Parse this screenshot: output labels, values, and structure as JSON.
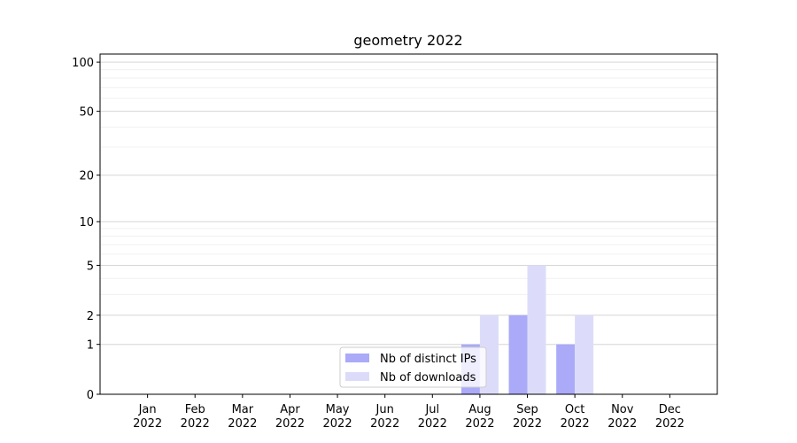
{
  "chart_data": {
    "type": "bar",
    "title": "geometry 2022",
    "categories": [
      "Jan 2022",
      "Feb 2022",
      "Mar 2022",
      "Apr 2022",
      "May 2022",
      "Jun 2022",
      "Jul 2022",
      "Aug 2022",
      "Sep 2022",
      "Oct 2022",
      "Nov 2022",
      "Dec 2022"
    ],
    "series": [
      {
        "name": "Nb of distinct IPs",
        "color": "#aaaaf8",
        "values": [
          0,
          0,
          0,
          0,
          0,
          0,
          0,
          1,
          2,
          1,
          0,
          0
        ]
      },
      {
        "name": "Nb of downloads",
        "color": "#dcdcfa",
        "values": [
          0,
          0,
          0,
          0,
          0,
          0,
          0,
          2,
          5,
          2,
          0,
          0
        ]
      }
    ],
    "yscale": "log1p",
    "ylim": [
      0,
      112
    ],
    "yticks": [
      0,
      1,
      2,
      5,
      10,
      20,
      50,
      100
    ],
    "minor_yticks": [
      3,
      4,
      6,
      7,
      8,
      9,
      30,
      40,
      60,
      70,
      80,
      90
    ],
    "grid": true,
    "legend": "lower center"
  }
}
